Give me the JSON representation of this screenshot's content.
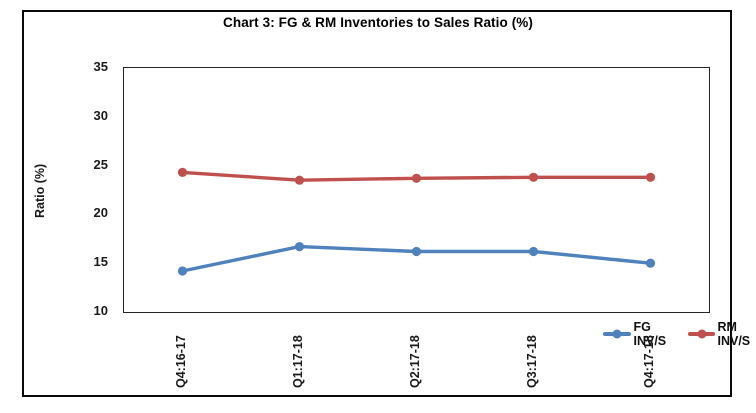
{
  "chart_data": {
    "type": "line",
    "title": "Chart 3: FG & RM Inventories to Sales Ratio (%)",
    "ylabel": "Ratio (%)",
    "xlabel": "",
    "categories": [
      "Q4:16-17",
      "Q1:17-18",
      "Q2:17-18",
      "Q3:17-18",
      "Q4:17-18"
    ],
    "series": [
      {
        "name": "FG INV/S",
        "color": "#4F81BD",
        "values": [
          14.2,
          16.7,
          16.2,
          16.2,
          15.0
        ]
      },
      {
        "name": "RM INV/S",
        "color": "#C0504D",
        "values": [
          24.3,
          23.5,
          23.7,
          23.8,
          23.8
        ]
      }
    ],
    "ylim": [
      10,
      35
    ],
    "yticks": [
      10,
      15,
      20,
      25,
      30,
      35
    ],
    "ytick_step": 5,
    "grid": false,
    "legend_position": "inside-bottom-right",
    "marker": "circle",
    "frame_color": "#262626",
    "border_color": "#0a0a0a"
  }
}
